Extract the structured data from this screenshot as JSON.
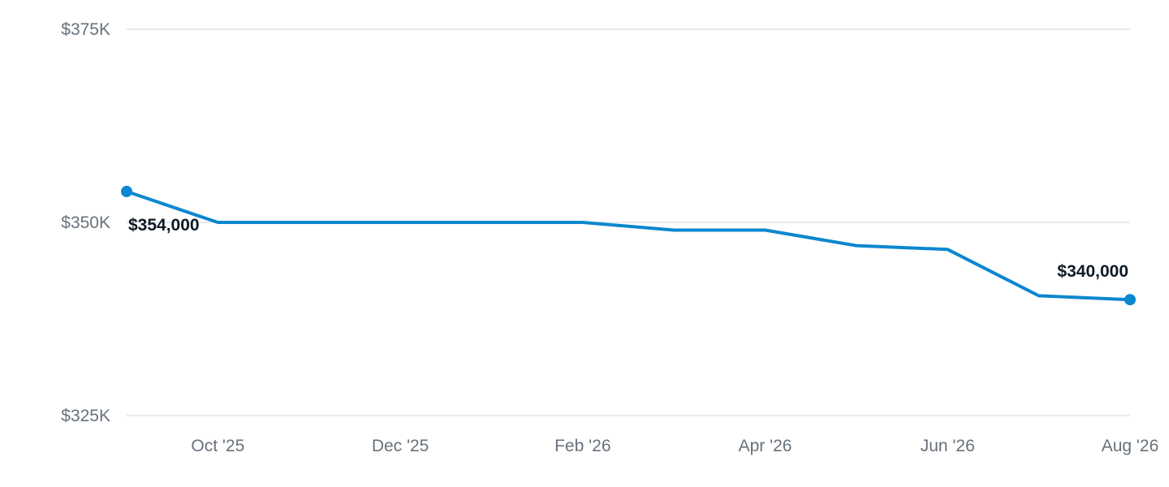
{
  "chart_data": {
    "type": "line",
    "title": "",
    "xlabel": "",
    "ylabel": "",
    "grid": true,
    "y_axis": {
      "min": 325000,
      "max": 375000,
      "ticks": [
        {
          "value": 375000,
          "label": "$375K"
        },
        {
          "value": 350000,
          "label": "$350K"
        },
        {
          "value": 325000,
          "label": "$325K"
        }
      ]
    },
    "x_axis": {
      "start": "2025-09",
      "end": "2026-08",
      "ticks": [
        {
          "month": "2025-10",
          "label": "Oct '25"
        },
        {
          "month": "2025-12",
          "label": "Dec '25"
        },
        {
          "month": "2026-02",
          "label": "Feb '26"
        },
        {
          "month": "2026-04",
          "label": "Apr '26"
        },
        {
          "month": "2026-06",
          "label": "Jun '26"
        },
        {
          "month": "2026-08",
          "label": "Aug '26"
        }
      ]
    },
    "series": [
      {
        "color": "#0b87cf",
        "points": [
          {
            "x": "2025-09",
            "y": 354000
          },
          {
            "x": "2025-10",
            "y": 350000
          },
          {
            "x": "2025-11",
            "y": 350000
          },
          {
            "x": "2025-12",
            "y": 350000
          },
          {
            "x": "2026-01",
            "y": 350000
          },
          {
            "x": "2026-02",
            "y": 350000
          },
          {
            "x": "2026-03",
            "y": 349000
          },
          {
            "x": "2026-04",
            "y": 349000
          },
          {
            "x": "2026-05",
            "y": 347000
          },
          {
            "x": "2026-06",
            "y": 346500
          },
          {
            "x": "2026-07",
            "y": 340500
          },
          {
            "x": "2026-08",
            "y": 340000
          }
        ]
      }
    ],
    "annotations": [
      {
        "x": "2025-09",
        "y": 354000,
        "label": "$354,000"
      },
      {
        "x": "2026-08",
        "y": 340000,
        "label": "$340,000"
      }
    ]
  }
}
